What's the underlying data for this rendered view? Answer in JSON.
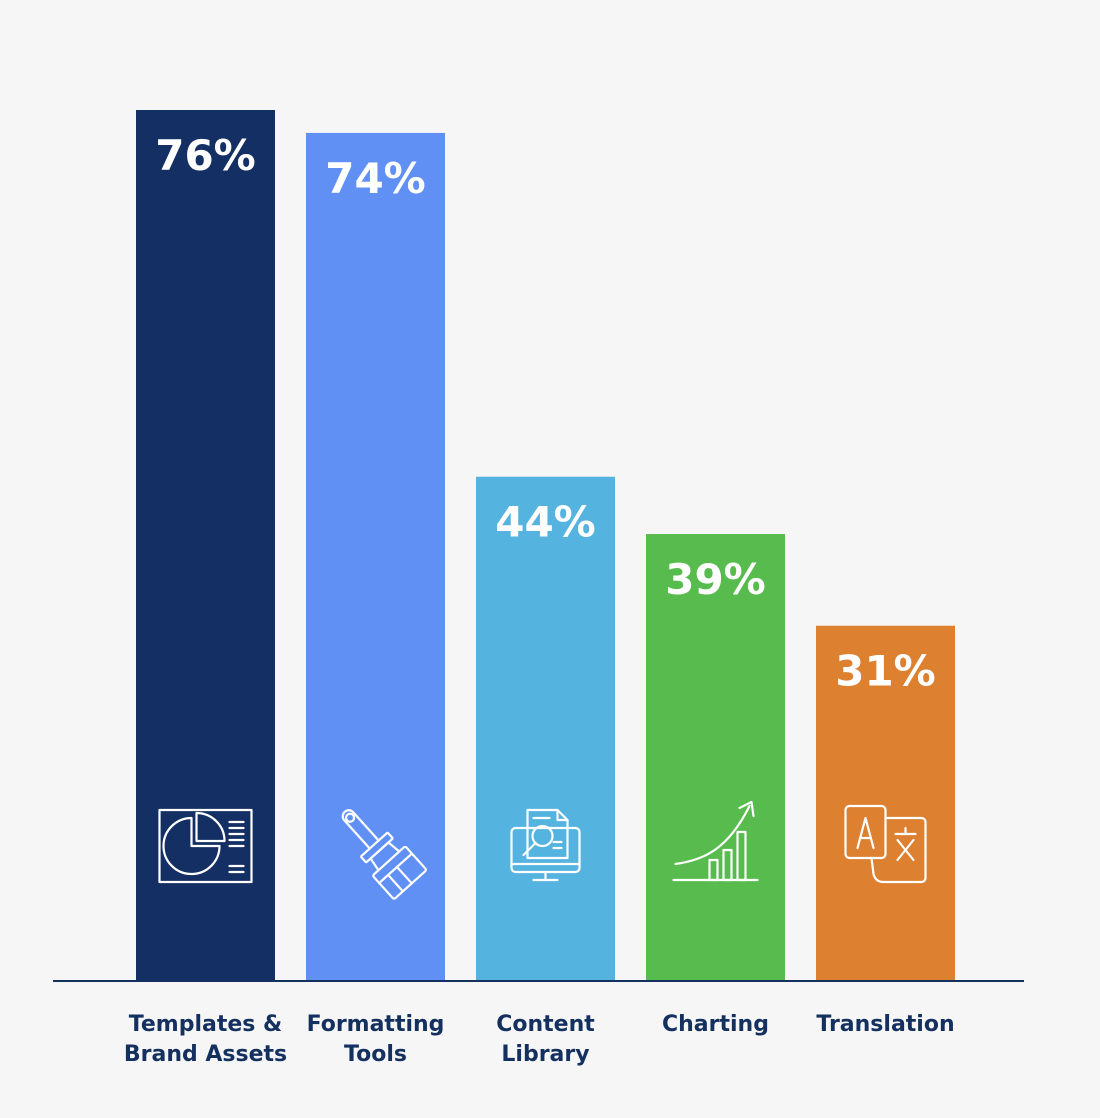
{
  "chart_data": {
    "type": "bar",
    "categories": [
      [
        "Templates &",
        "Brand Assets"
      ],
      [
        "Formatting",
        "Tools"
      ],
      [
        "Content",
        "Library"
      ],
      [
        "Charting"
      ],
      [
        "Translation"
      ]
    ],
    "values": [
      76,
      74,
      44,
      39,
      31
    ],
    "value_labels": [
      "76%",
      "74%",
      "44%",
      "39%",
      "31%"
    ],
    "colors": [
      "#142f63",
      "#6190f5",
      "#55b3df",
      "#58bb4d",
      "#dd8030"
    ],
    "icons": [
      "pie-chart-slide-icon",
      "paintbrush-icon",
      "document-search-icon",
      "growth-chart-icon",
      "translate-icon"
    ],
    "ylim": [
      0,
      76
    ],
    "grid": false,
    "legend": "none",
    "baseline_color": "#14305f",
    "label_color": "#14305f"
  }
}
